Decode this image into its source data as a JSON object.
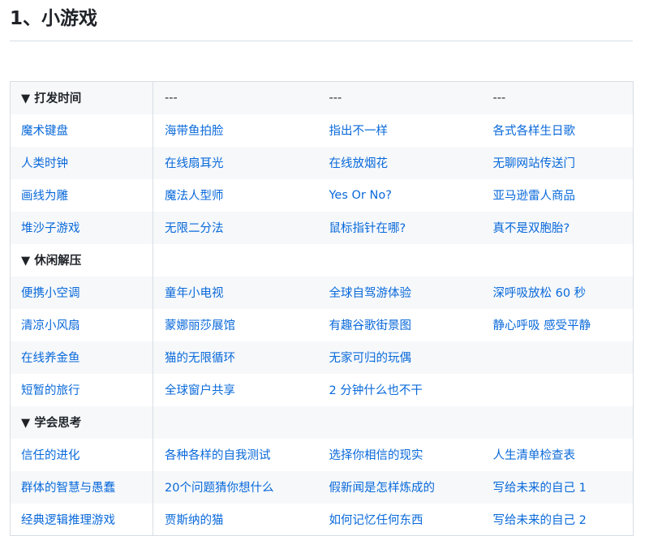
{
  "heading": "1、小游戏",
  "rows": [
    {
      "type": "section",
      "cells": [
        "▼ 打发时间",
        "---",
        "---",
        "---"
      ]
    },
    {
      "type": "link",
      "cells": [
        "魔术键盘",
        "海带鱼拍脸",
        "指出不一样",
        "各式各样生日歌"
      ]
    },
    {
      "type": "link",
      "cells": [
        "人类时钟",
        "在线扇耳光",
        "在线放烟花",
        "无聊网站传送门"
      ]
    },
    {
      "type": "link",
      "cells": [
        "画线为雕",
        "魔法人型师",
        "Yes Or No?",
        "亚马逊雷人商品"
      ]
    },
    {
      "type": "link",
      "cells": [
        "堆沙子游戏",
        "无限二分法",
        "鼠标指针在哪?",
        "真不是双胞胎?"
      ]
    },
    {
      "type": "section",
      "cells": [
        "▼ 休闲解压",
        "",
        "",
        ""
      ]
    },
    {
      "type": "link",
      "cells": [
        "便携小空调",
        "童年小电视",
        "全球自驾游体验",
        "深呼吸放松 60 秒"
      ]
    },
    {
      "type": "link",
      "cells": [
        "清凉小风扇",
        "蒙娜丽莎展馆",
        "有趣谷歌街景图",
        "静心呼吸 感受平静"
      ]
    },
    {
      "type": "link",
      "cells": [
        "在线养金鱼",
        "猫的无限循环",
        "无家可归的玩偶",
        ""
      ]
    },
    {
      "type": "link",
      "cells": [
        "短暂的旅行",
        "全球窗户共享",
        "2 分钟什么也不干",
        ""
      ]
    },
    {
      "type": "section",
      "cells": [
        "▼ 学会思考",
        "",
        "",
        ""
      ]
    },
    {
      "type": "link",
      "cells": [
        "信任的进化",
        "各种各样的自我测试",
        "选择你相信的现实",
        "人生清单检查表"
      ]
    },
    {
      "type": "link",
      "cells": [
        "群体的智慧与愚蠢",
        "20个问题猜你想什么",
        "假新闻是怎样炼成的",
        "写给未来的自己 1"
      ]
    },
    {
      "type": "link",
      "cells": [
        "经典逻辑推理游戏",
        "贾斯纳的猫",
        "如何记忆任何东西",
        "写给未来的自己 2"
      ]
    }
  ],
  "colors": {
    "link": "#0969da",
    "stripe": "#f6f8fa",
    "border": "#d8dee4"
  }
}
